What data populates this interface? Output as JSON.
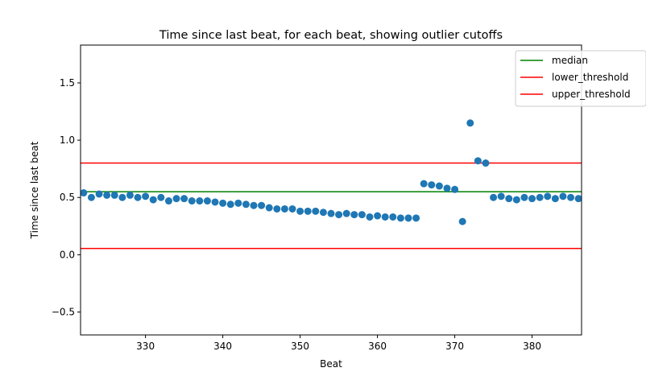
{
  "chart_data": {
    "type": "scatter",
    "title": "Time since last beat, for each beat, showing outlier cutoffs",
    "xlabel": "Beat",
    "ylabel": "Time since last beat",
    "xlim": [
      321.6,
      386.4
    ],
    "ylim": [
      -0.7,
      1.83
    ],
    "x_ticks": [
      330,
      340,
      350,
      360,
      370,
      380
    ],
    "y_ticks": [
      -0.5,
      0.0,
      0.5,
      1.0,
      1.5
    ],
    "x_tick_labels": [
      "330",
      "340",
      "350",
      "360",
      "370",
      "380"
    ],
    "y_tick_labels": [
      "−0.5",
      "0.0",
      "0.5",
      "1.0",
      "1.5"
    ],
    "grid": false,
    "legend_position": "top-right",
    "series": [
      {
        "kind": "points",
        "color": "#1f77b4",
        "x": [
          322,
          323,
          324,
          325,
          326,
          327,
          328,
          329,
          330,
          331,
          332,
          333,
          334,
          335,
          336,
          337,
          338,
          339,
          340,
          341,
          342,
          343,
          344,
          345,
          346,
          347,
          348,
          349,
          350,
          351,
          352,
          353,
          354,
          355,
          356,
          357,
          358,
          359,
          360,
          361,
          362,
          363,
          364,
          365,
          366,
          367,
          368,
          369,
          370,
          371,
          372,
          373,
          374,
          375,
          376,
          377,
          378,
          379,
          380,
          381,
          382,
          383,
          384,
          385,
          386
        ],
        "y": [
          0.54,
          0.5,
          0.53,
          0.52,
          0.52,
          0.5,
          0.52,
          0.5,
          0.51,
          0.48,
          0.5,
          0.47,
          0.49,
          0.49,
          0.47,
          0.47,
          0.47,
          0.46,
          0.45,
          0.44,
          0.45,
          0.44,
          0.43,
          0.43,
          0.41,
          0.4,
          0.4,
          0.4,
          0.38,
          0.38,
          0.38,
          0.37,
          0.36,
          0.35,
          0.36,
          0.35,
          0.35,
          0.33,
          0.34,
          0.33,
          0.33,
          0.32,
          0.32,
          0.32,
          0.62,
          0.61,
          0.6,
          0.58,
          0.57,
          0.29,
          1.15,
          0.82,
          0.8,
          0.5,
          0.51,
          0.49,
          0.48,
          0.5,
          0.49,
          0.5,
          0.51,
          0.49,
          0.51,
          0.5,
          0.49
        ]
      }
    ],
    "lines": [
      {
        "name": "median",
        "y": 0.55,
        "color": "#008000"
      },
      {
        "name": "lower_threshold",
        "y": 0.055,
        "color": "#ff0000"
      },
      {
        "name": "upper_threshold",
        "y": 0.8,
        "color": "#ff0000"
      }
    ]
  }
}
